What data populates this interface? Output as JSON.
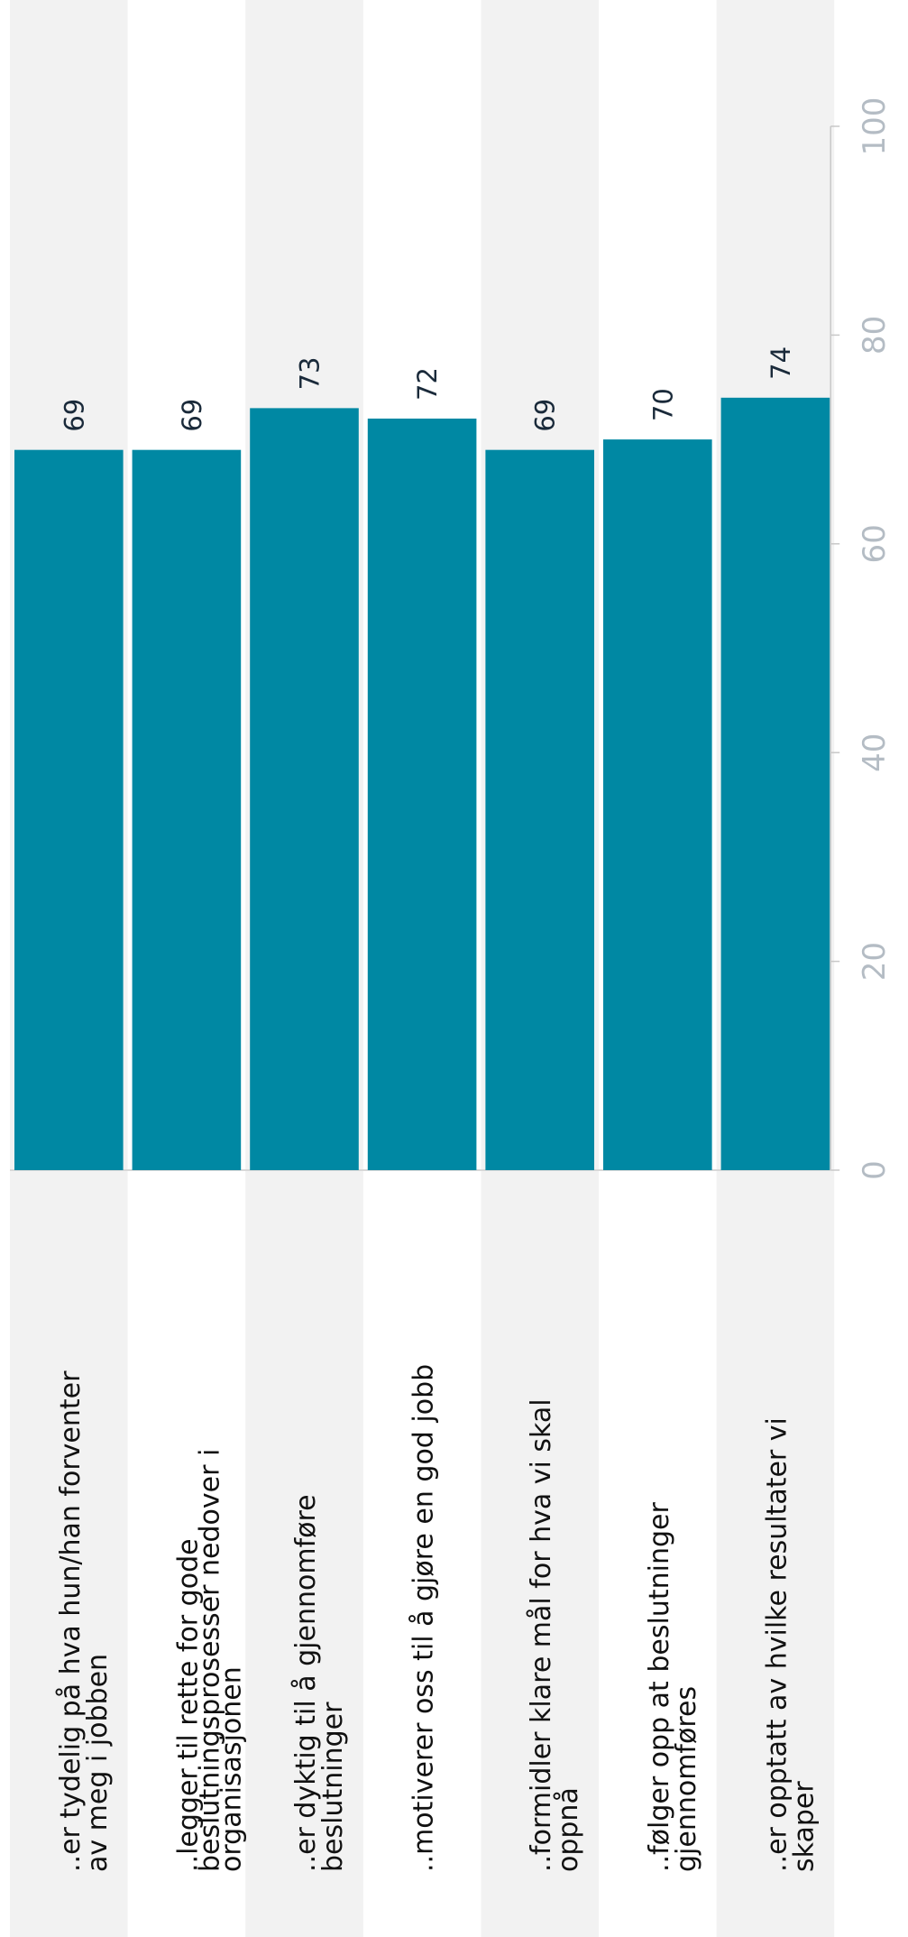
{
  "chart_data": {
    "type": "bar",
    "orientation": "rotated",
    "categories": [
      [
        "..er tydelig på hva hun/han forventer",
        "av meg i jobben"
      ],
      [
        "..legger til rette for gode",
        "beslutningsprosesser nedover i",
        "organisasjonen"
      ],
      [
        "..er dyktig til å gjennomføre",
        "beslutninger"
      ],
      [
        "..motiverer oss til å gjøre en god jobb"
      ],
      [
        "..formidler klare mål for hva vi skal",
        "oppnå"
      ],
      [
        "..følger opp at beslutninger",
        "gjennomføres"
      ],
      [
        "..er opptatt av hvilke resultater vi",
        "skaper"
      ]
    ],
    "values": [
      69,
      69,
      73,
      72,
      69,
      70,
      74
    ],
    "color": "#0088a3",
    "ylim": [
      0,
      100
    ],
    "yticks": [
      0,
      20,
      40,
      60,
      80,
      100
    ],
    "grid": false
  }
}
